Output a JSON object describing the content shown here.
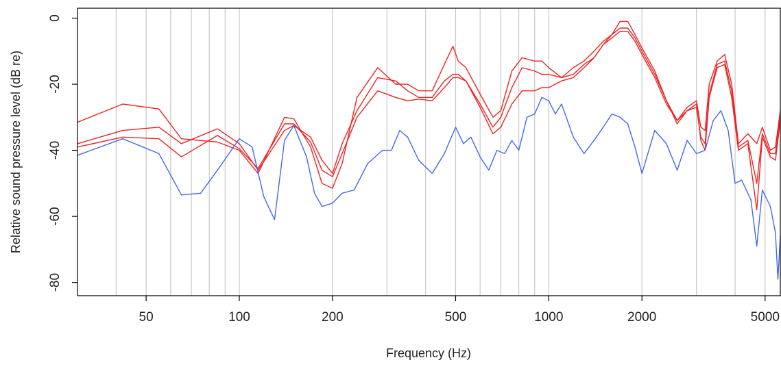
{
  "chart_data": {
    "type": "line",
    "title": "",
    "xlabel": "Frequency (Hz)",
    "ylabel": "Relative sound pressure level (dB re)",
    "x_scale": "log",
    "xlim": [
      30,
      5600
    ],
    "ylim": [
      -84,
      3
    ],
    "grid": "vertical",
    "legend": "none",
    "x_ticks": [
      {
        "value": 50,
        "label": "50"
      },
      {
        "value": 100,
        "label": "100"
      },
      {
        "value": 200,
        "label": "200"
      },
      {
        "value": 500,
        "label": "500"
      },
      {
        "value": 1000,
        "label": "1000"
      },
      {
        "value": 2000,
        "label": "2000"
      },
      {
        "value": 5000,
        "label": "5000"
      }
    ],
    "y_ticks": [
      {
        "value": 0,
        "label": "0"
      },
      {
        "value": -20,
        "label": "-20"
      },
      {
        "value": -40,
        "label": "-40"
      },
      {
        "value": -60,
        "label": "-60"
      },
      {
        "value": -80,
        "label": "-80"
      }
    ],
    "grid_x": [
      40,
      50,
      60,
      70,
      80,
      90,
      100,
      200,
      300,
      400,
      500,
      600,
      700,
      800,
      900,
      1000,
      2000,
      3000,
      4000,
      5000
    ],
    "series": [
      {
        "color": "#ee2222",
        "points": [
          [
            30,
            -31.5
          ],
          [
            42,
            -26
          ],
          [
            55,
            -27.5
          ],
          [
            65,
            -36.5
          ],
          [
            85,
            -37.5
          ],
          [
            100,
            -40
          ],
          [
            115,
            -47
          ],
          [
            140,
            -30
          ],
          [
            150,
            -30.5
          ],
          [
            170,
            -39
          ],
          [
            185,
            -50
          ],
          [
            200,
            -51.5
          ],
          [
            215,
            -44
          ],
          [
            240,
            -24
          ],
          [
            280,
            -15
          ],
          [
            320,
            -20
          ],
          [
            350,
            -20
          ],
          [
            380,
            -22
          ],
          [
            420,
            -22
          ],
          [
            460,
            -14
          ],
          [
            490,
            -8.5
          ],
          [
            510,
            -13
          ],
          [
            540,
            -15
          ],
          [
            600,
            -23
          ],
          [
            660,
            -30
          ],
          [
            700,
            -28
          ],
          [
            760,
            -16
          ],
          [
            820,
            -12
          ],
          [
            900,
            -13
          ],
          [
            950,
            -13
          ],
          [
            1000,
            -15
          ],
          [
            1100,
            -18
          ],
          [
            1200,
            -15
          ],
          [
            1300,
            -13
          ],
          [
            1400,
            -10
          ],
          [
            1500,
            -7
          ],
          [
            1600,
            -5
          ],
          [
            1700,
            -1
          ],
          [
            1800,
            -1
          ],
          [
            1900,
            -5
          ],
          [
            2000,
            -9
          ],
          [
            2200,
            -16
          ],
          [
            2400,
            -25
          ],
          [
            2600,
            -31
          ],
          [
            2800,
            -27
          ],
          [
            3000,
            -25
          ],
          [
            3100,
            -33
          ],
          [
            3200,
            -34
          ],
          [
            3300,
            -20
          ],
          [
            3500,
            -13
          ],
          [
            3700,
            -11
          ],
          [
            3900,
            -20
          ],
          [
            4100,
            -38
          ],
          [
            4400,
            -35
          ],
          [
            4700,
            -38
          ],
          [
            4900,
            -33
          ],
          [
            5200,
            -40
          ],
          [
            5400,
            -39
          ],
          [
            5600,
            -28
          ]
        ]
      },
      {
        "color": "#ee2222",
        "points": [
          [
            30,
            -38
          ],
          [
            42,
            -34
          ],
          [
            55,
            -33
          ],
          [
            65,
            -38
          ],
          [
            85,
            -33.5
          ],
          [
            100,
            -38
          ],
          [
            115,
            -46
          ],
          [
            140,
            -34
          ],
          [
            150,
            -32.5
          ],
          [
            170,
            -36
          ],
          [
            185,
            -43
          ],
          [
            200,
            -47
          ],
          [
            215,
            -38
          ],
          [
            240,
            -28
          ],
          [
            280,
            -18
          ],
          [
            320,
            -19
          ],
          [
            350,
            -22
          ],
          [
            380,
            -24
          ],
          [
            420,
            -24
          ],
          [
            460,
            -19
          ],
          [
            490,
            -17
          ],
          [
            510,
            -17
          ],
          [
            540,
            -19
          ],
          [
            600,
            -26
          ],
          [
            660,
            -33
          ],
          [
            700,
            -30
          ],
          [
            760,
            -21
          ],
          [
            820,
            -15
          ],
          [
            900,
            -16
          ],
          [
            950,
            -17
          ],
          [
            1000,
            -17
          ],
          [
            1100,
            -18
          ],
          [
            1200,
            -17
          ],
          [
            1300,
            -14
          ],
          [
            1400,
            -12
          ],
          [
            1500,
            -8
          ],
          [
            1600,
            -5
          ],
          [
            1700,
            -3
          ],
          [
            1800,
            -3
          ],
          [
            1900,
            -6
          ],
          [
            2000,
            -10
          ],
          [
            2200,
            -17
          ],
          [
            2400,
            -25
          ],
          [
            2600,
            -32
          ],
          [
            2800,
            -28
          ],
          [
            3000,
            -27
          ],
          [
            3100,
            -36
          ],
          [
            3200,
            -38
          ],
          [
            3300,
            -23
          ],
          [
            3500,
            -14
          ],
          [
            3700,
            -13
          ],
          [
            3900,
            -22
          ],
          [
            4100,
            -39
          ],
          [
            4400,
            -37
          ],
          [
            4700,
            -50
          ],
          [
            4900,
            -35
          ],
          [
            5200,
            -41
          ],
          [
            5400,
            -41
          ],
          [
            5600,
            -30
          ]
        ]
      },
      {
        "color": "#ee2222",
        "points": [
          [
            30,
            -39
          ],
          [
            42,
            -36
          ],
          [
            55,
            -36.5
          ],
          [
            65,
            -42
          ],
          [
            85,
            -35.5
          ],
          [
            100,
            -39.5
          ],
          [
            115,
            -45.5
          ],
          [
            140,
            -32
          ],
          [
            150,
            -32
          ],
          [
            170,
            -37.5
          ],
          [
            185,
            -46
          ],
          [
            200,
            -48
          ],
          [
            215,
            -41
          ],
          [
            240,
            -30
          ],
          [
            280,
            -22
          ],
          [
            320,
            -24
          ],
          [
            350,
            -25
          ],
          [
            380,
            -24.5
          ],
          [
            420,
            -25
          ],
          [
            460,
            -21
          ],
          [
            490,
            -18
          ],
          [
            510,
            -18
          ],
          [
            540,
            -19
          ],
          [
            600,
            -27
          ],
          [
            660,
            -35
          ],
          [
            700,
            -33
          ],
          [
            760,
            -26
          ],
          [
            820,
            -22
          ],
          [
            900,
            -22
          ],
          [
            950,
            -21
          ],
          [
            1000,
            -21
          ],
          [
            1100,
            -19
          ],
          [
            1200,
            -18
          ],
          [
            1300,
            -15
          ],
          [
            1400,
            -12
          ],
          [
            1500,
            -8
          ],
          [
            1600,
            -6
          ],
          [
            1700,
            -4
          ],
          [
            1800,
            -4
          ],
          [
            1900,
            -7
          ],
          [
            2000,
            -11
          ],
          [
            2200,
            -18
          ],
          [
            2400,
            -26
          ],
          [
            2600,
            -31
          ],
          [
            2800,
            -28
          ],
          [
            3000,
            -26
          ],
          [
            3100,
            -37
          ],
          [
            3200,
            -40
          ],
          [
            3300,
            -24
          ],
          [
            3500,
            -15
          ],
          [
            3700,
            -14
          ],
          [
            3900,
            -24
          ],
          [
            4100,
            -40
          ],
          [
            4400,
            -38
          ],
          [
            4700,
            -58
          ],
          [
            4900,
            -36
          ],
          [
            5200,
            -42
          ],
          [
            5400,
            -43
          ],
          [
            5600,
            -31
          ]
        ]
      },
      {
        "color": "#4466ee",
        "points": [
          [
            30,
            -41.5
          ],
          [
            42,
            -36.5
          ],
          [
            55,
            -41
          ],
          [
            65,
            -53.5
          ],
          [
            75,
            -53
          ],
          [
            85,
            -46
          ],
          [
            100,
            -36.5
          ],
          [
            110,
            -39
          ],
          [
            120,
            -54
          ],
          [
            130,
            -61
          ],
          [
            140,
            -37
          ],
          [
            150,
            -32.5
          ],
          [
            165,
            -42
          ],
          [
            175,
            -53
          ],
          [
            185,
            -57
          ],
          [
            200,
            -56
          ],
          [
            215,
            -53
          ],
          [
            235,
            -52
          ],
          [
            260,
            -44
          ],
          [
            290,
            -40
          ],
          [
            310,
            -40
          ],
          [
            330,
            -34
          ],
          [
            350,
            -36
          ],
          [
            380,
            -43
          ],
          [
            420,
            -47
          ],
          [
            460,
            -41
          ],
          [
            500,
            -33
          ],
          [
            530,
            -38
          ],
          [
            560,
            -36
          ],
          [
            600,
            -42
          ],
          [
            640,
            -46
          ],
          [
            680,
            -40
          ],
          [
            720,
            -41
          ],
          [
            760,
            -37
          ],
          [
            800,
            -40
          ],
          [
            850,
            -30
          ],
          [
            900,
            -29
          ],
          [
            950,
            -24
          ],
          [
            1000,
            -25
          ],
          [
            1050,
            -29
          ],
          [
            1100,
            -26
          ],
          [
            1200,
            -36
          ],
          [
            1300,
            -41
          ],
          [
            1400,
            -37
          ],
          [
            1500,
            -33
          ],
          [
            1600,
            -29
          ],
          [
            1700,
            -30
          ],
          [
            1800,
            -32
          ],
          [
            1900,
            -39
          ],
          [
            2000,
            -47
          ],
          [
            2200,
            -34
          ],
          [
            2400,
            -38
          ],
          [
            2600,
            -46
          ],
          [
            2800,
            -37
          ],
          [
            3000,
            -41
          ],
          [
            3200,
            -40
          ],
          [
            3400,
            -31
          ],
          [
            3600,
            -28
          ],
          [
            3800,
            -34
          ],
          [
            4000,
            -50
          ],
          [
            4200,
            -49
          ],
          [
            4500,
            -55
          ],
          [
            4700,
            -69
          ],
          [
            4900,
            -52
          ],
          [
            5200,
            -57
          ],
          [
            5400,
            -65
          ],
          [
            5500,
            -79
          ],
          [
            5600,
            -66
          ]
        ]
      }
    ]
  }
}
